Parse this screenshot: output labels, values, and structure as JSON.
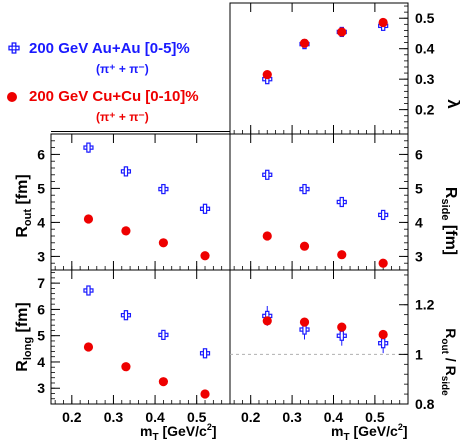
{
  "legend": {
    "auau_label": "200 GeV Au+Au [0-5]%",
    "auau_sub": "(π⁺ + π⁻)",
    "cucu_label": "200 GeV Cu+Cu [0-10]%",
    "cucu_sub": "(π⁺ + π⁻)"
  },
  "colors": {
    "auau": "#1a1aff",
    "cucu": "#ee0000",
    "axes": "#000000"
  },
  "chart_data": [
    {
      "type": "scatter",
      "panel": "lambda",
      "ylabel": "λ",
      "ylabel_side": "right",
      "xlim": [
        0.15,
        0.58
      ],
      "ylim": [
        0.12,
        0.55
      ],
      "yticks": [
        0.2,
        0.3,
        0.4,
        0.5
      ],
      "x": [
        0.24,
        0.33,
        0.42,
        0.52
      ],
      "series": [
        {
          "name": "200 GeV Au+Au [0-5]%",
          "marker": "open-cross",
          "values": [
            0.3,
            0.415,
            0.455,
            0.475
          ],
          "err": [
            0.008,
            0.006,
            0.006,
            0.008
          ]
        },
        {
          "name": "200 GeV Cu+Cu [0-10]%",
          "marker": "filled-circle",
          "values": [
            0.315,
            0.418,
            0.455,
            0.486
          ],
          "err": [
            0,
            0,
            0,
            0
          ]
        }
      ]
    },
    {
      "type": "scatter",
      "panel": "rout",
      "ylabel": "R_out [fm]",
      "ylabel_side": "left",
      "xlim": [
        0.15,
        0.58
      ],
      "ylim": [
        2.6,
        6.6
      ],
      "yticks": [
        3,
        4,
        5,
        6
      ],
      "x": [
        0.24,
        0.33,
        0.42,
        0.52
      ],
      "series": [
        {
          "name": "200 GeV Au+Au [0-5]%",
          "marker": "open-cross",
          "values": [
            6.2,
            5.5,
            4.98,
            4.4
          ],
          "err": [
            0.15,
            0.15,
            0.12,
            0.12
          ]
        },
        {
          "name": "200 GeV Cu+Cu [0-10]%",
          "marker": "filled-circle",
          "values": [
            4.1,
            3.75,
            3.4,
            3.02
          ],
          "err": [
            0,
            0,
            0,
            0
          ]
        }
      ]
    },
    {
      "type": "scatter",
      "panel": "rside",
      "ylabel": "R_side [fm]",
      "ylabel_side": "right",
      "xlim": [
        0.15,
        0.58
      ],
      "ylim": [
        2.6,
        6.6
      ],
      "yticks": [
        3,
        4,
        5,
        6
      ],
      "x": [
        0.24,
        0.33,
        0.42,
        0.52
      ],
      "series": [
        {
          "name": "200 GeV Au+Au [0-5]%",
          "marker": "open-cross",
          "values": [
            5.4,
            4.98,
            4.6,
            4.22
          ],
          "err": [
            0.06,
            0.06,
            0.06,
            0.06
          ]
        },
        {
          "name": "200 GeV Cu+Cu [0-10]%",
          "marker": "filled-circle",
          "values": [
            3.6,
            3.3,
            3.05,
            2.8
          ],
          "err": [
            0,
            0,
            0,
            0
          ]
        }
      ]
    },
    {
      "type": "scatter",
      "panel": "rlong",
      "ylabel": "R_long [fm]",
      "ylabel_side": "left",
      "xlabel": "m_T [GeV/c²]",
      "xlim": [
        0.15,
        0.58
      ],
      "ylim": [
        2.4,
        7.5
      ],
      "yticks": [
        3,
        4,
        5,
        6,
        7
      ],
      "xticks": [
        0.2,
        0.3,
        0.4,
        0.5
      ],
      "x": [
        0.24,
        0.33,
        0.42,
        0.52
      ],
      "series": [
        {
          "name": "200 GeV Au+Au [0-5]%",
          "marker": "open-cross",
          "values": [
            6.72,
            5.78,
            5.03,
            4.33
          ],
          "err": [
            0.08,
            0.08,
            0.08,
            0.08
          ]
        },
        {
          "name": "200 GeV Cu+Cu [0-10]%",
          "marker": "filled-circle",
          "values": [
            4.57,
            3.82,
            3.25,
            2.78
          ],
          "err": [
            0,
            0,
            0,
            0
          ]
        }
      ]
    },
    {
      "type": "scatter",
      "panel": "ratio",
      "ylabel": "R_out / R_side",
      "ylabel_side": "right",
      "xlabel": "m_T [GeV/c²]",
      "xlim": [
        0.15,
        0.58
      ],
      "ylim": [
        0.8,
        1.34
      ],
      "yticks": [
        0.8,
        1,
        1.2
      ],
      "refline": 1.0,
      "xticks": [
        0.2,
        0.3,
        0.4,
        0.5
      ],
      "x": [
        0.24,
        0.33,
        0.42,
        0.52
      ],
      "series": [
        {
          "name": "200 GeV Au+Au [0-5]%",
          "marker": "open-cross",
          "values": [
            1.155,
            1.1,
            1.075,
            1.045
          ],
          "err": [
            0.04,
            0.04,
            0.04,
            0.04
          ]
        },
        {
          "name": "200 GeV Cu+Cu [0-10]%",
          "marker": "filled-circle",
          "values": [
            1.135,
            1.13,
            1.11,
            1.08
          ],
          "err": [
            0,
            0,
            0,
            0
          ]
        }
      ]
    }
  ]
}
